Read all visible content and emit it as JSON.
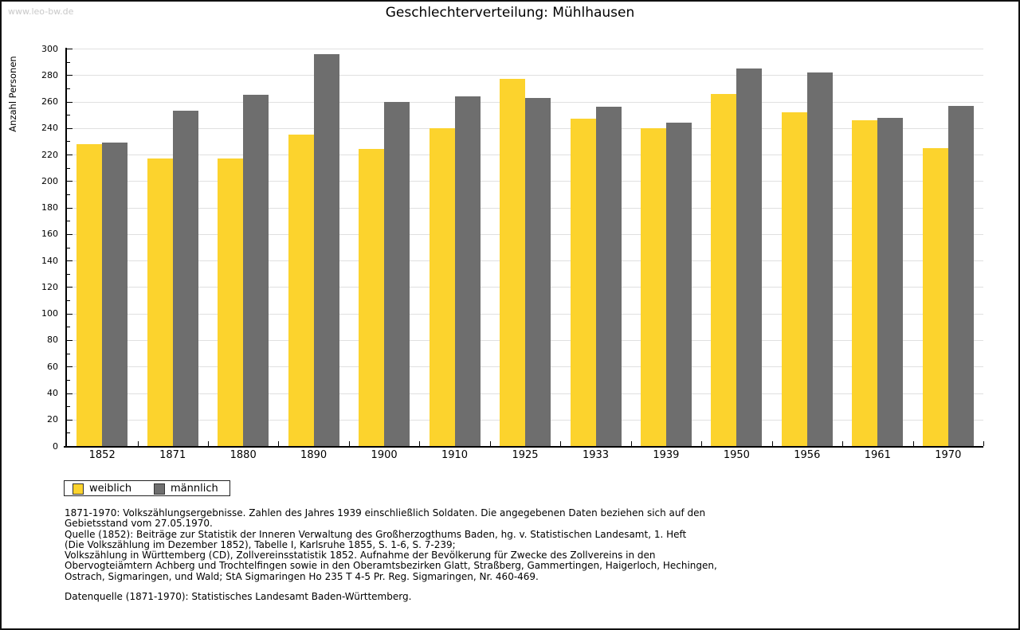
{
  "page": {
    "watermark": "www.leo-bw.de"
  },
  "chart_data": {
    "type": "bar",
    "title": "Geschlechterverteilung: Mühlhausen",
    "xlabel": "",
    "ylabel": "Anzahl Personen",
    "ylim": [
      0,
      300
    ],
    "ytick_step": 20,
    "y_minor_tick_step": 10,
    "grid": true,
    "legend_position": "bottom-left",
    "categories": [
      "1852",
      "1871",
      "1880",
      "1890",
      "1900",
      "1910",
      "1925",
      "1933",
      "1939",
      "1950",
      "1956",
      "1961",
      "1970"
    ],
    "series": [
      {
        "name": "weiblich",
        "color": "#FCD32D",
        "values": [
          228,
          217,
          217,
          235,
          224,
          240,
          277,
          247,
          240,
          266,
          252,
          246,
          225
        ]
      },
      {
        "name": "männlich",
        "color": "#6E6E6E",
        "values": [
          229,
          253,
          265,
          296,
          260,
          264,
          263,
          256,
          244,
          285,
          282,
          248,
          257
        ]
      }
    ]
  },
  "footnotes": {
    "lines": [
      "1871-1970: Volkszählungsergebnisse. Zahlen des Jahres 1939 einschließlich Soldaten. Die angegebenen Daten beziehen sich auf den",
      "Gebietsstand vom 27.05.1970.",
      "Quelle (1852): Beiträge zur Statistik der Inneren Verwaltung des Großherzogthums Baden, hg. v. Statistischen Landesamt, 1. Heft",
      "(Die Volkszählung im Dezember 1852), Tabelle I, Karlsruhe 1855, S. 1-6, S. 7-239;",
      "Volkszählung in Württemberg (CD), Zollvereinsstatistik 1852. Aufnahme der Bevölkerung für Zwecke des Zollvereins in den",
      "Obervogteiämtern Achberg und Trochtelfingen sowie in den Oberamtsbezirken Glatt, Straßberg, Gammertingen, Haigerloch, Hechingen,",
      "Ostrach, Sigmaringen, und Wald; StA Sigmaringen Ho 235 T 4-5 Pr. Reg. Sigmaringen, Nr. 460-469."
    ]
  },
  "datasource": "Datenquelle (1871-1970): Statistisches Landesamt Baden-Württemberg."
}
